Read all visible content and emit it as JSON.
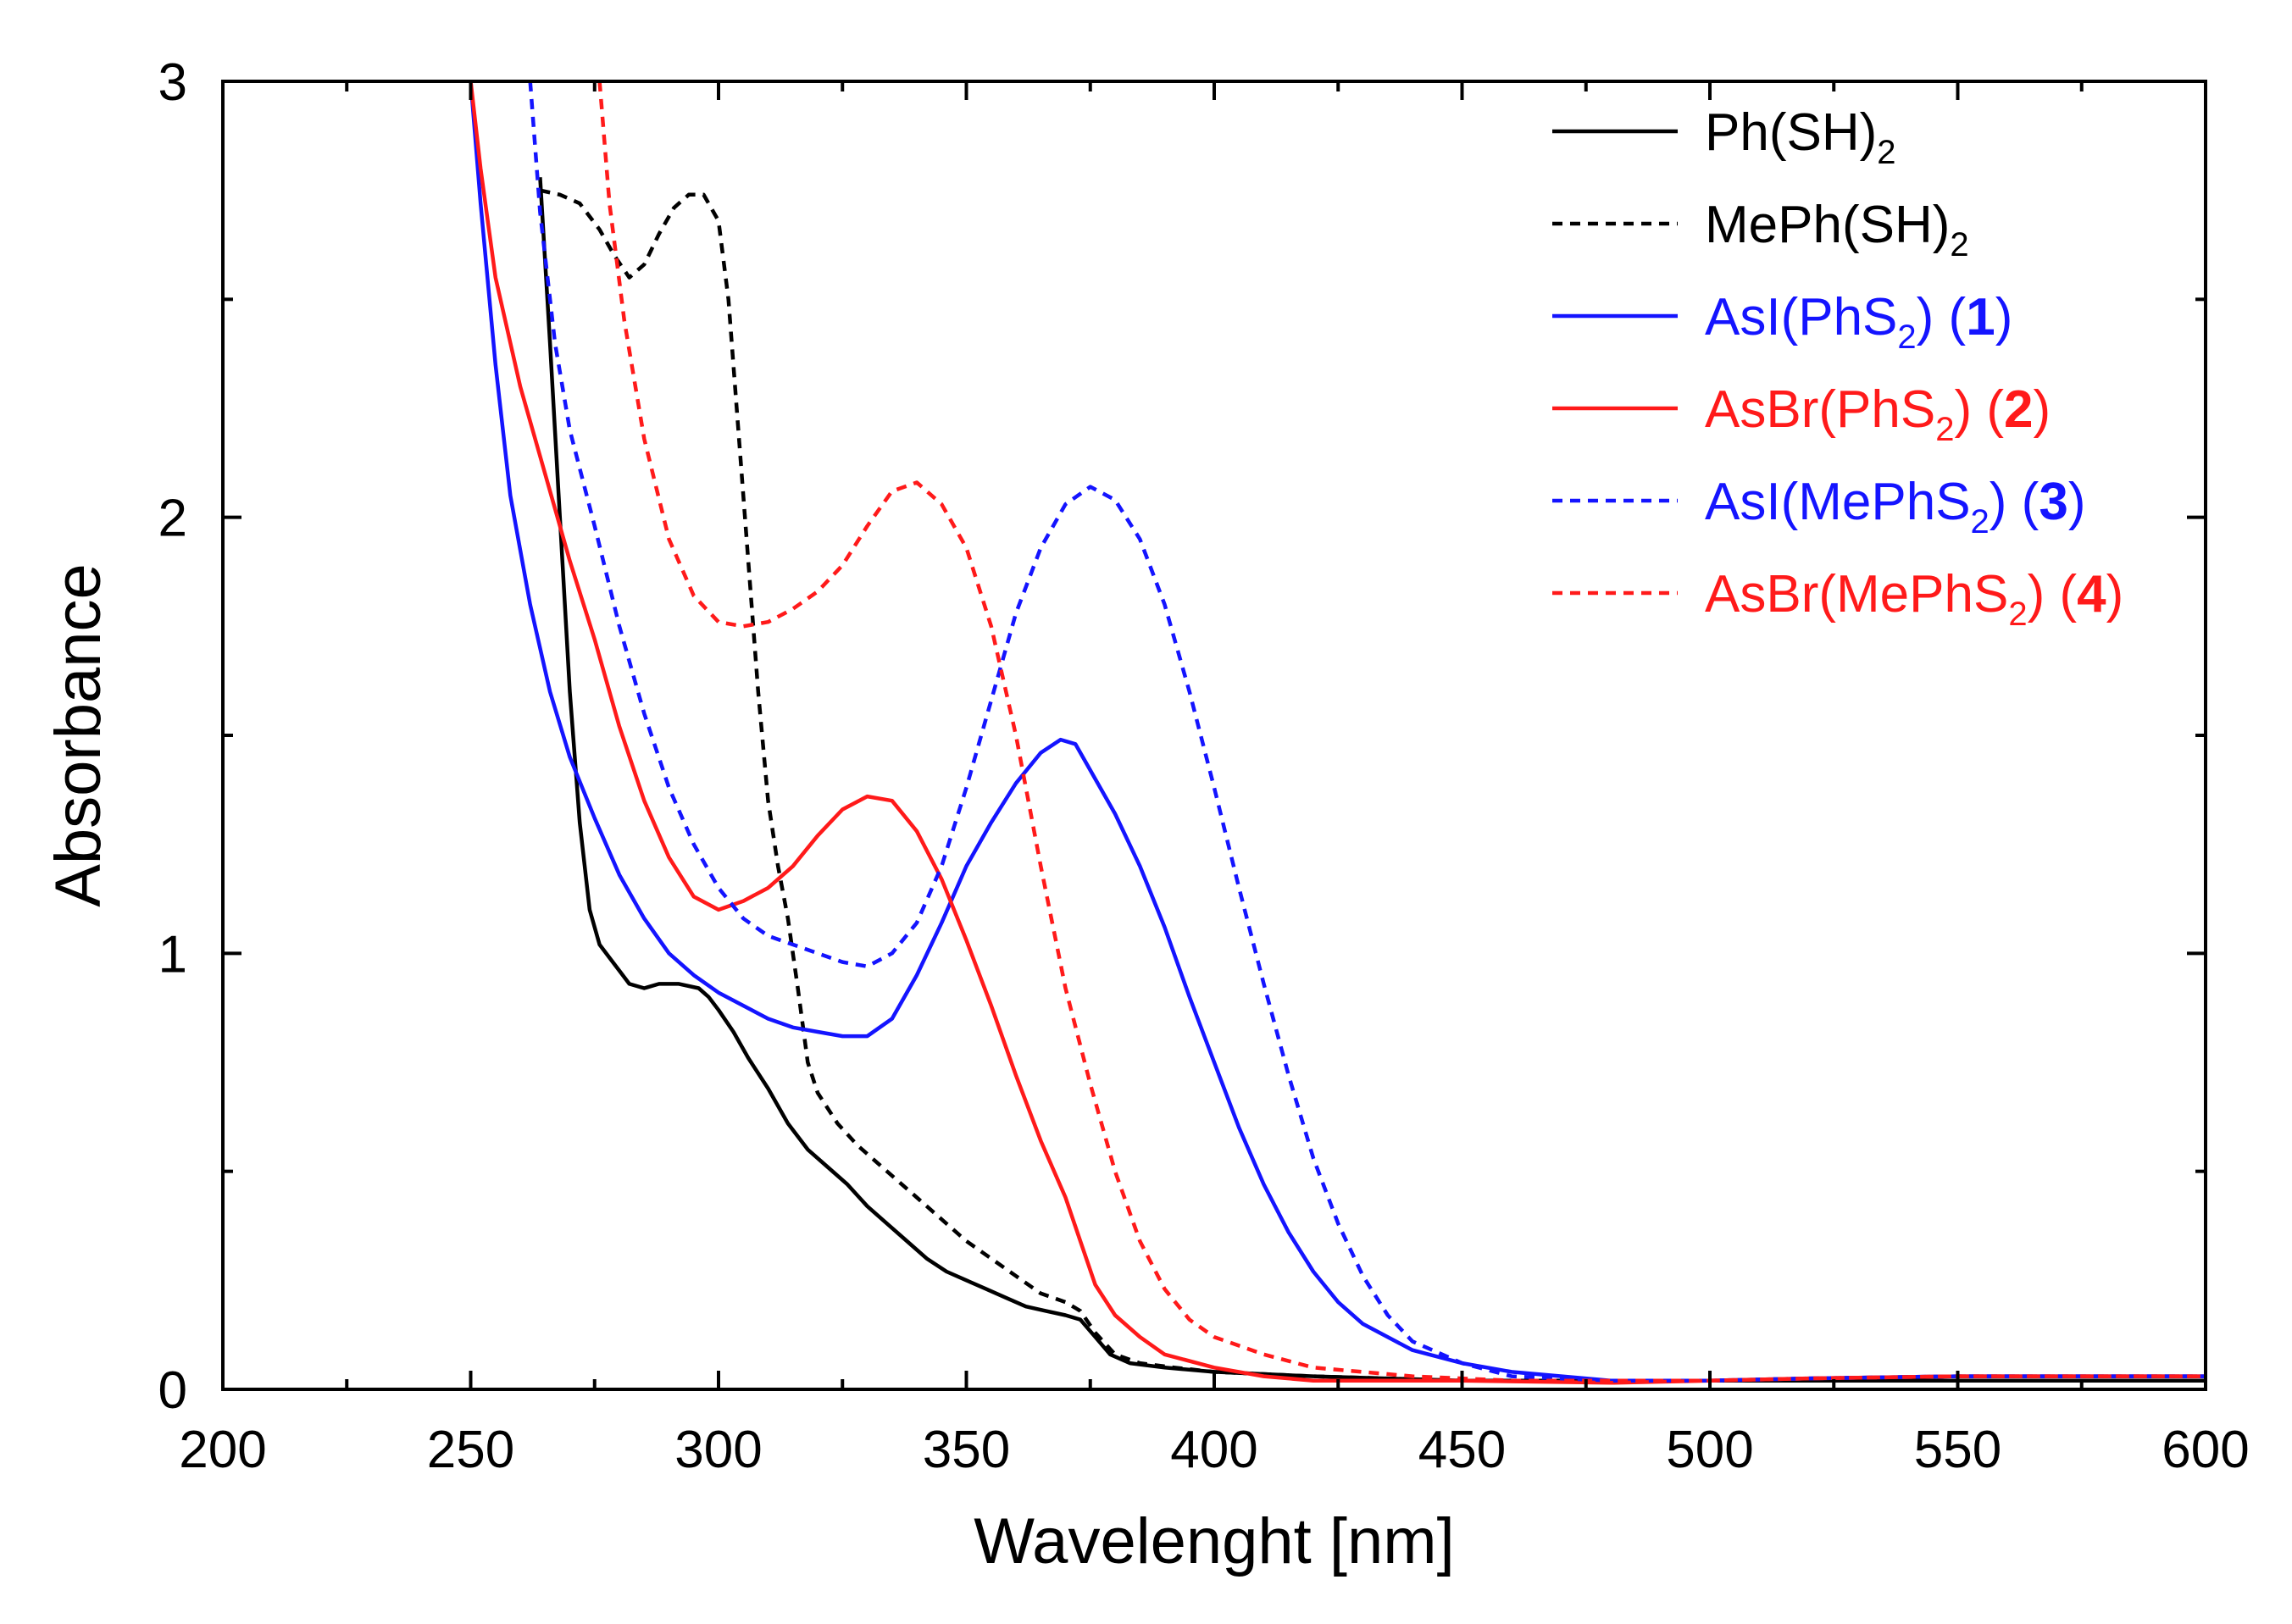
{
  "chart_data": {
    "type": "line",
    "title": "",
    "xlabel": "Wavelenght [nm]",
    "ylabel": "Absorbance",
    "xlim": [
      200,
      600
    ],
    "ylim": [
      0,
      3
    ],
    "x_ticks": [
      "200",
      "250",
      "300",
      "350",
      "400",
      "450",
      "500",
      "550",
      "600"
    ],
    "y_ticks": [
      "0",
      "1",
      "2",
      "3"
    ],
    "grid": false,
    "legend_position": "top-right",
    "series": [
      {
        "name": "Ph(SH)2",
        "label": {
          "pre": "Ph(SH)",
          "sub": "2",
          "post": "",
          "num": ""
        },
        "color": "#000000",
        "dashed": false,
        "points": [
          [
            264,
            2.78
          ],
          [
            266,
            2.4
          ],
          [
            268,
            2.0
          ],
          [
            270,
            1.6
          ],
          [
            272,
            1.3
          ],
          [
            274,
            1.1
          ],
          [
            276,
            1.02
          ],
          [
            278,
            0.99
          ],
          [
            280,
            0.96
          ],
          [
            282,
            0.93
          ],
          [
            285,
            0.92
          ],
          [
            288,
            0.93
          ],
          [
            292,
            0.93
          ],
          [
            296,
            0.92
          ],
          [
            298,
            0.9
          ],
          [
            300,
            0.87
          ],
          [
            303,
            0.82
          ],
          [
            306,
            0.76
          ],
          [
            310,
            0.69
          ],
          [
            314,
            0.61
          ],
          [
            318,
            0.55
          ],
          [
            322,
            0.51
          ],
          [
            326,
            0.47
          ],
          [
            330,
            0.42
          ],
          [
            334,
            0.38
          ],
          [
            338,
            0.34
          ],
          [
            342,
            0.3
          ],
          [
            346,
            0.27
          ],
          [
            350,
            0.25
          ],
          [
            354,
            0.23
          ],
          [
            358,
            0.21
          ],
          [
            362,
            0.19
          ],
          [
            366,
            0.18
          ],
          [
            370,
            0.17
          ],
          [
            373,
            0.16
          ],
          [
            376,
            0.12
          ],
          [
            379,
            0.08
          ],
          [
            383,
            0.06
          ],
          [
            390,
            0.05
          ],
          [
            400,
            0.04
          ],
          [
            420,
            0.03
          ],
          [
            450,
            0.02
          ],
          [
            480,
            0.02
          ],
          [
            500,
            0.02
          ],
          [
            530,
            0.02
          ],
          [
            550,
            0.02
          ],
          [
            575,
            0.02
          ],
          [
            600,
            0.02
          ]
        ]
      },
      {
        "name": "MePh(SH)2",
        "label": {
          "pre": "MePh(SH)",
          "sub": "2",
          "post": "",
          "num": ""
        },
        "color": "#000000",
        "dashed": true,
        "points": [
          [
            264,
            2.75
          ],
          [
            268,
            2.74
          ],
          [
            272,
            2.72
          ],
          [
            276,
            2.66
          ],
          [
            279,
            2.6
          ],
          [
            282,
            2.55
          ],
          [
            285,
            2.58
          ],
          [
            288,
            2.65
          ],
          [
            291,
            2.71
          ],
          [
            294,
            2.74
          ],
          [
            297,
            2.74
          ],
          [
            300,
            2.68
          ],
          [
            302,
            2.5
          ],
          [
            304,
            2.2
          ],
          [
            306,
            1.9
          ],
          [
            308,
            1.6
          ],
          [
            310,
            1.35
          ],
          [
            312,
            1.2
          ],
          [
            314,
            1.08
          ],
          [
            316,
            0.92
          ],
          [
            318,
            0.75
          ],
          [
            320,
            0.68
          ],
          [
            324,
            0.61
          ],
          [
            328,
            0.56
          ],
          [
            332,
            0.52
          ],
          [
            336,
            0.48
          ],
          [
            340,
            0.44
          ],
          [
            345,
            0.39
          ],
          [
            350,
            0.34
          ],
          [
            355,
            0.3
          ],
          [
            360,
            0.26
          ],
          [
            365,
            0.22
          ],
          [
            370,
            0.2
          ],
          [
            373,
            0.18
          ],
          [
            376,
            0.13
          ],
          [
            380,
            0.08
          ],
          [
            385,
            0.06
          ],
          [
            392,
            0.05
          ],
          [
            400,
            0.04
          ],
          [
            420,
            0.03
          ],
          [
            450,
            0.02
          ],
          [
            500,
            0.02
          ],
          [
            550,
            0.02
          ],
          [
            600,
            0.02
          ]
        ]
      },
      {
        "name": "AsI(PhS2) (1)",
        "label": {
          "pre": "AsI(PhS",
          "sub": "2",
          "post": ") (",
          "num": "1"
        },
        "color": "#1414ff",
        "dashed": false,
        "points": [
          [
            250,
            3.0
          ],
          [
            252,
            2.72
          ],
          [
            255,
            2.35
          ],
          [
            258,
            2.05
          ],
          [
            262,
            1.8
          ],
          [
            266,
            1.6
          ],
          [
            270,
            1.45
          ],
          [
            275,
            1.31
          ],
          [
            280,
            1.18
          ],
          [
            285,
            1.08
          ],
          [
            290,
            1.0
          ],
          [
            295,
            0.95
          ],
          [
            300,
            0.91
          ],
          [
            305,
            0.88
          ],
          [
            310,
            0.85
          ],
          [
            315,
            0.83
          ],
          [
            320,
            0.82
          ],
          [
            325,
            0.81
          ],
          [
            330,
            0.81
          ],
          [
            335,
            0.85
          ],
          [
            340,
            0.95
          ],
          [
            345,
            1.07
          ],
          [
            350,
            1.2
          ],
          [
            355,
            1.3
          ],
          [
            360,
            1.39
          ],
          [
            365,
            1.46
          ],
          [
            369,
            1.49
          ],
          [
            372,
            1.48
          ],
          [
            375,
            1.42
          ],
          [
            380,
            1.32
          ],
          [
            385,
            1.2
          ],
          [
            390,
            1.06
          ],
          [
            395,
            0.9
          ],
          [
            400,
            0.75
          ],
          [
            405,
            0.6
          ],
          [
            410,
            0.47
          ],
          [
            415,
            0.36
          ],
          [
            420,
            0.27
          ],
          [
            425,
            0.2
          ],
          [
            430,
            0.15
          ],
          [
            440,
            0.09
          ],
          [
            450,
            0.06
          ],
          [
            460,
            0.04
          ],
          [
            480,
            0.02
          ],
          [
            500,
            0.02
          ],
          [
            520,
            0.025
          ],
          [
            550,
            0.03
          ],
          [
            575,
            0.03
          ],
          [
            600,
            0.03
          ]
        ]
      },
      {
        "name": "AsBr(PhS2) (2)",
        "label": {
          "pre": "AsBr(PhS",
          "sub": "2",
          "post": ") (",
          "num": "2"
        },
        "color": "#ff1a1a",
        "dashed": false,
        "points": [
          [
            250,
            3.0
          ],
          [
            252,
            2.8
          ],
          [
            255,
            2.55
          ],
          [
            260,
            2.3
          ],
          [
            265,
            2.1
          ],
          [
            270,
            1.9
          ],
          [
            275,
            1.72
          ],
          [
            280,
            1.52
          ],
          [
            285,
            1.35
          ],
          [
            290,
            1.22
          ],
          [
            295,
            1.13
          ],
          [
            300,
            1.1
          ],
          [
            305,
            1.12
          ],
          [
            310,
            1.15
          ],
          [
            315,
            1.2
          ],
          [
            320,
            1.27
          ],
          [
            325,
            1.33
          ],
          [
            330,
            1.36
          ],
          [
            335,
            1.35
          ],
          [
            340,
            1.28
          ],
          [
            345,
            1.17
          ],
          [
            350,
            1.03
          ],
          [
            355,
            0.88
          ],
          [
            360,
            0.72
          ],
          [
            365,
            0.57
          ],
          [
            370,
            0.44
          ],
          [
            373,
            0.34
          ],
          [
            376,
            0.24
          ],
          [
            380,
            0.17
          ],
          [
            385,
            0.12
          ],
          [
            390,
            0.08
          ],
          [
            400,
            0.05
          ],
          [
            410,
            0.03
          ],
          [
            420,
            0.02
          ],
          [
            450,
            0.02
          ],
          [
            480,
            0.015
          ],
          [
            500,
            0.02
          ],
          [
            520,
            0.025
          ],
          [
            550,
            0.03
          ],
          [
            575,
            0.03
          ],
          [
            600,
            0.03
          ]
        ]
      },
      {
        "name": "AsI(MePhS2) (3)",
        "label": {
          "pre": "AsI(MePhS",
          "sub": "2",
          "post": ") (",
          "num": "3"
        },
        "color": "#1414ff",
        "dashed": true,
        "points": [
          [
            262,
            3.0
          ],
          [
            264,
            2.7
          ],
          [
            267,
            2.4
          ],
          [
            270,
            2.2
          ],
          [
            275,
            1.98
          ],
          [
            280,
            1.75
          ],
          [
            285,
            1.55
          ],
          [
            290,
            1.38
          ],
          [
            295,
            1.25
          ],
          [
            300,
            1.15
          ],
          [
            305,
            1.08
          ],
          [
            310,
            1.04
          ],
          [
            315,
            1.02
          ],
          [
            320,
            1.0
          ],
          [
            325,
            0.98
          ],
          [
            330,
            0.97
          ],
          [
            335,
            1.0
          ],
          [
            340,
            1.07
          ],
          [
            345,
            1.2
          ],
          [
            350,
            1.38
          ],
          [
            355,
            1.58
          ],
          [
            360,
            1.78
          ],
          [
            365,
            1.93
          ],
          [
            370,
            2.03
          ],
          [
            375,
            2.07
          ],
          [
            380,
            2.04
          ],
          [
            385,
            1.95
          ],
          [
            390,
            1.8
          ],
          [
            395,
            1.6
          ],
          [
            400,
            1.38
          ],
          [
            405,
            1.15
          ],
          [
            410,
            0.93
          ],
          [
            415,
            0.72
          ],
          [
            420,
            0.53
          ],
          [
            425,
            0.38
          ],
          [
            430,
            0.26
          ],
          [
            435,
            0.17
          ],
          [
            440,
            0.11
          ],
          [
            450,
            0.06
          ],
          [
            460,
            0.03
          ],
          [
            480,
            0.02
          ],
          [
            500,
            0.02
          ],
          [
            520,
            0.025
          ],
          [
            550,
            0.03
          ],
          [
            575,
            0.03
          ],
          [
            600,
            0.03
          ]
        ]
      },
      {
        "name": "AsBr(MePhS2) (4)",
        "label": {
          "pre": "AsBr(MePhS",
          "sub": "2",
          "post": ") (",
          "num": "4"
        },
        "color": "#ff1a1a",
        "dashed": true,
        "points": [
          [
            276,
            3.0
          ],
          [
            278,
            2.72
          ],
          [
            281,
            2.45
          ],
          [
            285,
            2.18
          ],
          [
            290,
            1.95
          ],
          [
            295,
            1.82
          ],
          [
            300,
            1.76
          ],
          [
            305,
            1.75
          ],
          [
            310,
            1.76
          ],
          [
            315,
            1.79
          ],
          [
            320,
            1.83
          ],
          [
            325,
            1.89
          ],
          [
            330,
            1.98
          ],
          [
            335,
            2.06
          ],
          [
            340,
            2.08
          ],
          [
            345,
            2.03
          ],
          [
            350,
            1.93
          ],
          [
            355,
            1.75
          ],
          [
            360,
            1.5
          ],
          [
            365,
            1.2
          ],
          [
            370,
            0.92
          ],
          [
            375,
            0.7
          ],
          [
            380,
            0.5
          ],
          [
            385,
            0.34
          ],
          [
            390,
            0.23
          ],
          [
            395,
            0.16
          ],
          [
            400,
            0.12
          ],
          [
            410,
            0.08
          ],
          [
            420,
            0.05
          ],
          [
            440,
            0.03
          ],
          [
            460,
            0.02
          ],
          [
            480,
            0.02
          ],
          [
            500,
            0.02
          ],
          [
            520,
            0.025
          ],
          [
            550,
            0.03
          ],
          [
            575,
            0.03
          ],
          [
            600,
            0.03
          ]
        ]
      }
    ]
  }
}
